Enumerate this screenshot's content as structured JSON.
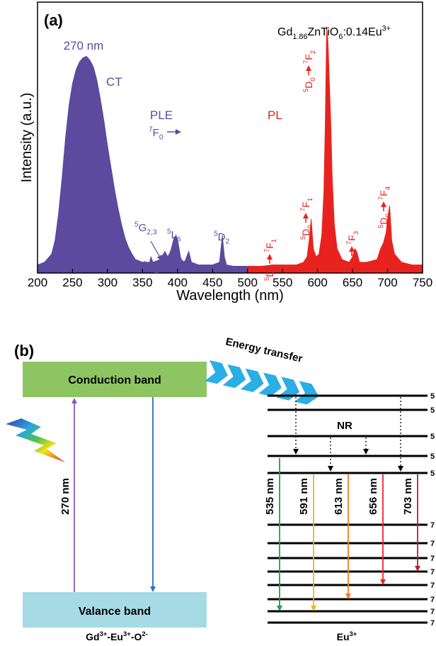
{
  "chart_data": {
    "type": "area",
    "x_label": "Wavelength (nm)",
    "y_label": "Intensity (a.u.)",
    "xlim": [
      200,
      750
    ],
    "xticks": [
      200,
      250,
      300,
      350,
      400,
      450,
      500,
      550,
      600,
      650,
      700,
      750
    ],
    "ylim": [
      0,
      100
    ],
    "series": [
      {
        "name": "PLE",
        "color": "#5b4a9e",
        "x": [
          200,
          210,
          220,
          225,
          230,
          235,
          240,
          245,
          250,
          255,
          260,
          265,
          270,
          275,
          280,
          285,
          290,
          295,
          300,
          305,
          310,
          315,
          320,
          325,
          330,
          335,
          340,
          350,
          360,
          362,
          365,
          375,
          382,
          386,
          390,
          395,
          398,
          401,
          405,
          410,
          416,
          420,
          430,
          450,
          460,
          464,
          467,
          470,
          480,
          490,
          500
        ],
        "values": [
          3,
          4,
          7,
          12,
          22,
          35,
          50,
          62,
          70,
          75,
          78,
          79.5,
          80,
          78.5,
          76,
          71,
          64,
          56,
          47,
          39,
          31,
          24,
          18,
          13,
          9.5,
          7,
          5,
          4,
          4,
          6,
          4,
          5,
          8,
          6,
          8,
          13,
          14,
          11,
          5,
          4,
          8,
          4,
          3,
          3,
          4,
          14,
          6,
          3,
          2.5,
          2.5,
          2.5
        ]
      },
      {
        "name": "PL",
        "color": "#e8231f",
        "x": [
          500,
          520,
          535,
          540,
          550,
          560,
          570,
          580,
          585,
          588,
          591,
          594,
          598,
          602,
          606,
          609,
          611,
          613,
          615,
          617,
          619,
          621,
          624,
          628,
          635,
          645,
          650,
          653,
          656,
          660,
          670,
          685,
          690,
          694,
          698,
          700,
          703,
          706,
          710,
          720,
          735,
          750
        ],
        "values": [
          2.5,
          2.5,
          3,
          3,
          3,
          3,
          3,
          4,
          6,
          12,
          20,
          9,
          6,
          7,
          14,
          30,
          55,
          91,
          85,
          70,
          55,
          35,
          18,
          9,
          5,
          4,
          6,
          9,
          8,
          4,
          4,
          5,
          9,
          11,
          15,
          20,
          25,
          12,
          7,
          4,
          3,
          3
        ]
      }
    ],
    "annotations": {
      "panel": "(a)",
      "formula": [
        "Gd",
        "1.86",
        "ZnTiO",
        "6",
        ":0.14Eu",
        "3+"
      ],
      "ct_peak": "270 nm",
      "ct": "CT",
      "ple_labels": [
        [
          "7",
          "F",
          "0"
        ],
        [
          "5",
          "G",
          "2,3"
        ],
        [
          "5",
          "D",
          "4"
        ],
        [
          "5",
          "L",
          "6"
        ],
        [
          "5",
          "D",
          "3"
        ],
        [
          "5",
          "D",
          "2"
        ]
      ],
      "pl_labels": [
        [
          "5",
          "D",
          "1",
          "7",
          "F",
          "1"
        ],
        [
          "5",
          "D",
          "0",
          "7",
          "F",
          "1"
        ],
        [
          "5",
          "D",
          "0",
          "7",
          "F",
          "2"
        ],
        [
          "5",
          "D",
          "0",
          "7",
          "F",
          "3"
        ],
        [
          "5",
          "D",
          "0",
          "7",
          "F",
          "4"
        ]
      ]
    }
  },
  "diagram": {
    "panel": "(b)",
    "energy_transfer": "Energy transfer",
    "conduction_band": "Conduction band",
    "valance_band": "Valance band",
    "excitation": "270 nm",
    "nr": "NR",
    "emissions": [
      "535 nm",
      "591 nm",
      "613 nm",
      "656 nm",
      "703 nm"
    ],
    "host": [
      "Gd",
      "3+",
      "-Eu",
      "3+",
      "-O",
      "2-"
    ],
    "ion": [
      "Eu",
      "3+"
    ],
    "upper_levels": [
      "5",
      "5",
      "5",
      "5",
      "5"
    ],
    "lower_levels": [
      "7",
      "7",
      "7",
      "7",
      "7",
      "7",
      "7",
      "7"
    ]
  }
}
